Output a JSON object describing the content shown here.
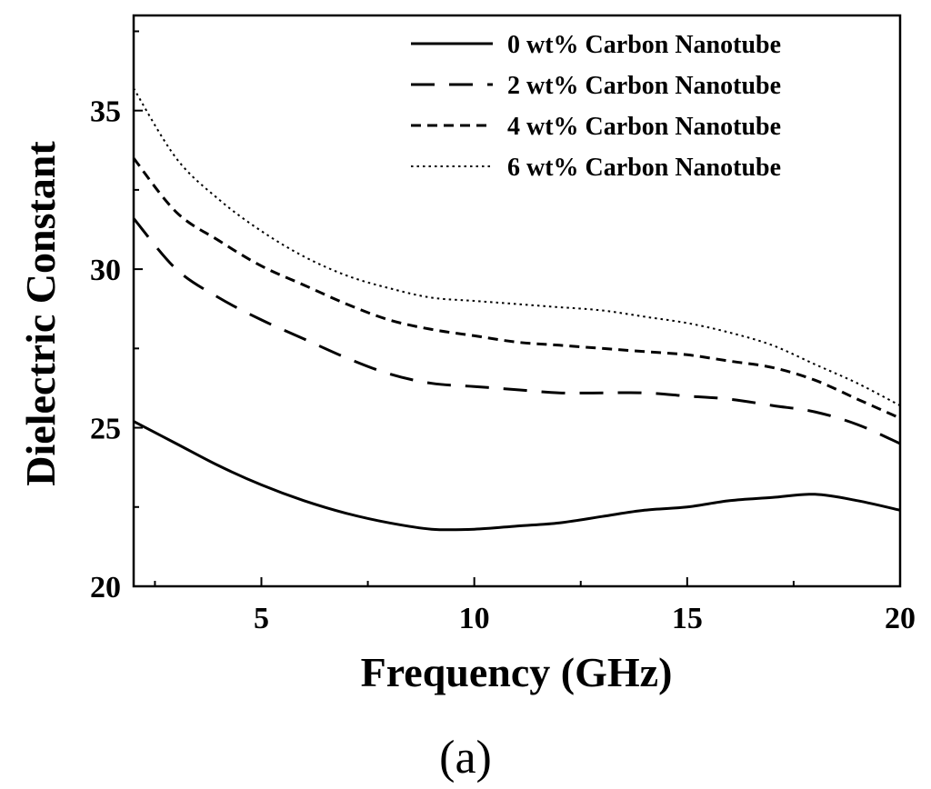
{
  "chart_data": {
    "type": "line",
    "title": "",
    "xlabel": "Frequency (GHz)",
    "ylabel": "Dielectric Constant",
    "xlim": [
      2,
      20
    ],
    "ylim": [
      20,
      38
    ],
    "xticks": [
      5,
      10,
      15,
      20
    ],
    "yticks": [
      20,
      25,
      30,
      35
    ],
    "grid": false,
    "legend_position": "top-right",
    "series": [
      {
        "name": "0 wt% Carbon Nanotube",
        "dash": "solid",
        "x": [
          2,
          3,
          4,
          5,
          6,
          7,
          8,
          9,
          10,
          11,
          12,
          13,
          14,
          15,
          16,
          17,
          18,
          19,
          20
        ],
        "y": [
          25.2,
          24.5,
          23.8,
          23.2,
          22.7,
          22.3,
          22.0,
          21.8,
          21.8,
          21.9,
          22.0,
          22.2,
          22.4,
          22.5,
          22.7,
          22.8,
          22.9,
          22.7,
          22.4
        ]
      },
      {
        "name": "2 wt% Carbon Nanotube",
        "dash": "long-dash",
        "x": [
          2,
          3,
          4,
          5,
          6,
          7,
          8,
          9,
          10,
          11,
          12,
          13,
          14,
          15,
          16,
          17,
          18,
          19,
          20
        ],
        "y": [
          31.6,
          30.0,
          29.1,
          28.4,
          27.8,
          27.2,
          26.7,
          26.4,
          26.3,
          26.2,
          26.1,
          26.1,
          26.1,
          26.0,
          25.9,
          25.7,
          25.5,
          25.1,
          24.5
        ]
      },
      {
        "name": "4 wt% Carbon Nanotube",
        "dash": "short-dash",
        "x": [
          2,
          3,
          4,
          5,
          6,
          7,
          8,
          9,
          10,
          11,
          12,
          13,
          14,
          15,
          16,
          17,
          18,
          19,
          20
        ],
        "y": [
          33.5,
          31.8,
          30.9,
          30.1,
          29.5,
          28.9,
          28.4,
          28.1,
          27.9,
          27.7,
          27.6,
          27.5,
          27.4,
          27.3,
          27.1,
          26.9,
          26.5,
          25.9,
          25.3
        ]
      },
      {
        "name": "6 wt% Carbon Nanotube",
        "dash": "dotted",
        "x": [
          2,
          3,
          4,
          5,
          6,
          7,
          8,
          9,
          10,
          11,
          12,
          13,
          14,
          15,
          16,
          17,
          18,
          19,
          20
        ],
        "y": [
          35.7,
          33.5,
          32.2,
          31.2,
          30.4,
          29.8,
          29.4,
          29.1,
          29.0,
          28.9,
          28.8,
          28.7,
          28.5,
          28.3,
          28.0,
          27.6,
          27.0,
          26.4,
          25.7
        ]
      }
    ]
  },
  "panel_label": "(a)"
}
